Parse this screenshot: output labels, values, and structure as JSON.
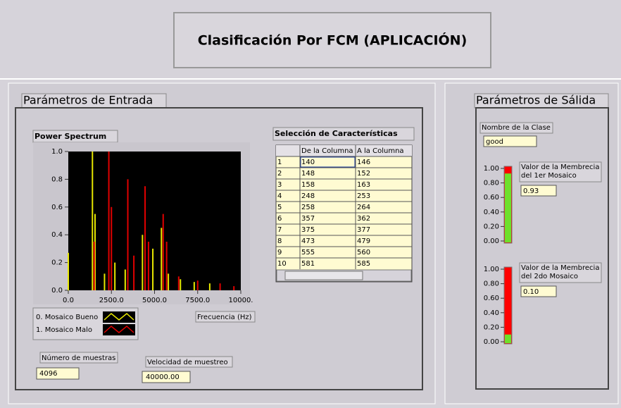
{
  "header": {
    "title": "Clasificación Por FCM  (APLICACIÓN)"
  },
  "input_panel": {
    "title": "Parámetros de Entrada",
    "chart_data": {
      "type": "spikes",
      "title": "Power Spectrum",
      "x_label": "Frecuencia (Hz)",
      "xlim": [
        0,
        10000
      ],
      "ylim": [
        0,
        1
      ],
      "xticks": [
        {
          "value": 0,
          "label": "0.0"
        },
        {
          "value": 2500,
          "label": "2500.0"
        },
        {
          "value": 5000,
          "label": "5000.0"
        },
        {
          "value": 7500,
          "label": "7500.0"
        },
        {
          "value": 10000,
          "label": "10000."
        }
      ],
      "yticks": [
        {
          "value": 0,
          "label": "0.0"
        },
        {
          "value": 0.2,
          "label": "0.2"
        },
        {
          "value": 0.4,
          "label": "0.4"
        },
        {
          "value": 0.6,
          "label": "0.6"
        },
        {
          "value": 0.8,
          "label": "0.8"
        },
        {
          "value": 1,
          "label": "1.0"
        }
      ],
      "series": [
        {
          "name": "0. Mosaico Bueno",
          "color": "#e8e800",
          "x": [
            0,
            1400,
            1550,
            2100,
            2700,
            3300,
            4300,
            4900,
            5400,
            5800,
            6500,
            7300,
            8200
          ],
          "values": [
            0.27,
            1.0,
            0.55,
            0.12,
            0.2,
            0.15,
            0.4,
            0.3,
            0.45,
            0.12,
            0.08,
            0.06,
            0.05
          ]
        },
        {
          "name": "1. Mosaico Malo",
          "color": "#e00000",
          "x": [
            1500,
            2350,
            2500,
            3450,
            3800,
            4450,
            4650,
            5500,
            5700,
            6400,
            7500,
            8800,
            9600
          ],
          "values": [
            0.35,
            1.0,
            0.6,
            0.8,
            0.25,
            0.75,
            0.35,
            0.55,
            0.35,
            0.1,
            0.07,
            0.05,
            0.03
          ]
        }
      ]
    },
    "samples": {
      "label": "Número de muestras",
      "value": "4096"
    },
    "rate": {
      "label": "Velocidad de muestreo",
      "value": "40000.00"
    },
    "table": {
      "title": "Selección de Características",
      "headers": [
        "De la Columna",
        "A la Columna"
      ],
      "rows": [
        [
          "1",
          "140",
          "146"
        ],
        [
          "2",
          "148",
          "152"
        ],
        [
          "3",
          "158",
          "163"
        ],
        [
          "4",
          "248",
          "253"
        ],
        [
          "5",
          "258",
          "264"
        ],
        [
          "6",
          "357",
          "362"
        ],
        [
          "7",
          "375",
          "377"
        ],
        [
          "8",
          "473",
          "479"
        ],
        [
          "9",
          "555",
          "560"
        ],
        [
          "10",
          "581",
          "585"
        ]
      ]
    }
  },
  "output_panel": {
    "title": "Parámetros de Sálida",
    "class_name": {
      "label": "Nombre de la Clase",
      "value": "good"
    },
    "slides": [
      {
        "label": [
          "Valor de la Membrecia",
          "del 1er Mosaico"
        ],
        "value": 0.93,
        "value_label": "0.93",
        "scale_ticks": [
          {
            "value": 0,
            "label": "0.00"
          },
          {
            "value": 0.2,
            "label": "0.20"
          },
          {
            "value": 0.4,
            "label": "0.40"
          },
          {
            "value": 0.6,
            "label": "0.60"
          },
          {
            "value": 0.8,
            "label": "0.80"
          },
          {
            "value": 1,
            "label": "1.00"
          }
        ]
      },
      {
        "label": [
          "Valor de la Membrecia",
          "del 2do Mosaico"
        ],
        "value": 0.1,
        "value_label": "0.10",
        "scale_ticks": [
          {
            "value": 0,
            "label": "0.00"
          },
          {
            "value": 0.2,
            "label": "0.20"
          },
          {
            "value": 0.4,
            "label": "0.40"
          },
          {
            "value": 0.6,
            "label": "0.60"
          },
          {
            "value": 0.8,
            "label": "0.80"
          },
          {
            "value": 1,
            "label": "1.00"
          }
        ]
      }
    ]
  }
}
